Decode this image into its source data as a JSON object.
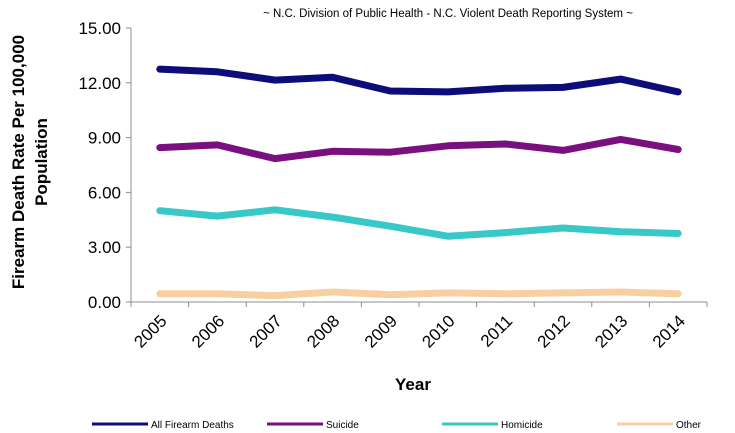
{
  "chart_data": {
    "type": "line",
    "title": "~ N.C. Division of Public Health - N.C. Violent Death Reporting System ~",
    "xlabel": "Year",
    "ylabel": "Firearm Death Rate Per 100,000 Population",
    "ylabel_lines": [
      "Firearm Death Rate Per 100,000",
      "Population"
    ],
    "ylim": [
      0,
      15
    ],
    "yticks": [
      "0.00",
      "3.00",
      "6.00",
      "9.00",
      "12.00",
      "15.00"
    ],
    "categories": [
      "2005",
      "2006",
      "2007",
      "2008",
      "2009",
      "2010",
      "2011",
      "2012",
      "2013",
      "2014"
    ],
    "grid": false,
    "legend_position": "bottom",
    "series": [
      {
        "name": "All Firearm Deaths",
        "color": "#0d0d7a",
        "values": [
          12.75,
          12.6,
          12.15,
          12.3,
          11.55,
          11.5,
          11.7,
          11.75,
          12.2,
          11.5
        ]
      },
      {
        "name": "Suicide",
        "color": "#7a0f80",
        "values": [
          8.45,
          8.6,
          7.85,
          8.25,
          8.2,
          8.55,
          8.65,
          8.3,
          8.9,
          8.35
        ]
      },
      {
        "name": "Homicide",
        "color": "#38c8c8",
        "values": [
          5.0,
          4.7,
          5.05,
          4.65,
          4.15,
          3.6,
          3.8,
          4.05,
          3.85,
          3.75
        ]
      },
      {
        "name": "Other",
        "color": "#f9cfa2",
        "values": [
          0.45,
          0.45,
          0.35,
          0.55,
          0.4,
          0.5,
          0.45,
          0.5,
          0.55,
          0.45
        ]
      }
    ]
  }
}
